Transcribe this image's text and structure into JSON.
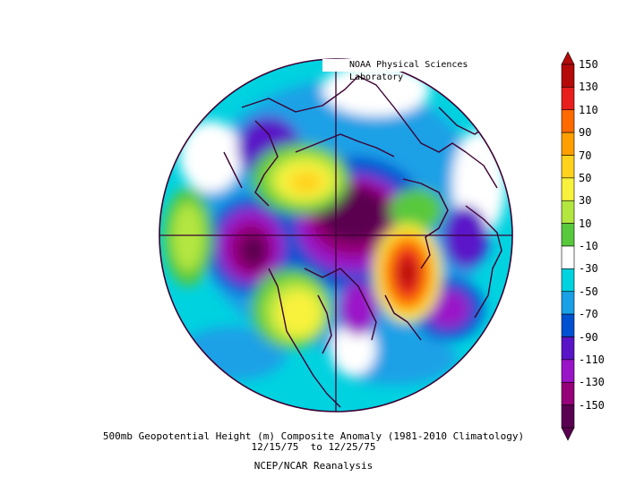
{
  "credit": "NOAA Physical Sciences Laboratory",
  "title_lines": [
    "500mb Geopotential Height (m) Composite Anomaly (1981-2010 Climatology)",
    "12/15/75  to 12/25/75",
    "NCEP/NCAR Reanalysis"
  ],
  "colorbar": {
    "labels": [
      "150",
      "130",
      "110",
      "90",
      "70",
      "50",
      "30",
      "10",
      "-10",
      "-30",
      "-50",
      "-70",
      "-90",
      "-110",
      "-130",
      "-150"
    ],
    "colors": [
      "#b40a0a",
      "#e81e1e",
      "#ff6a00",
      "#ffa000",
      "#ffd21e",
      "#f8f23c",
      "#b4e640",
      "#58c83c",
      "#ffffff",
      "#00d2e0",
      "#1aa0e6",
      "#0050d2",
      "#5a14c8",
      "#9a14c8",
      "#960078",
      "#5a0050"
    ]
  },
  "map": {
    "projection": "north-polar-stereographic",
    "colors": {
      "land_outline": "#3c0032",
      "background": "#00d2e0"
    }
  }
}
